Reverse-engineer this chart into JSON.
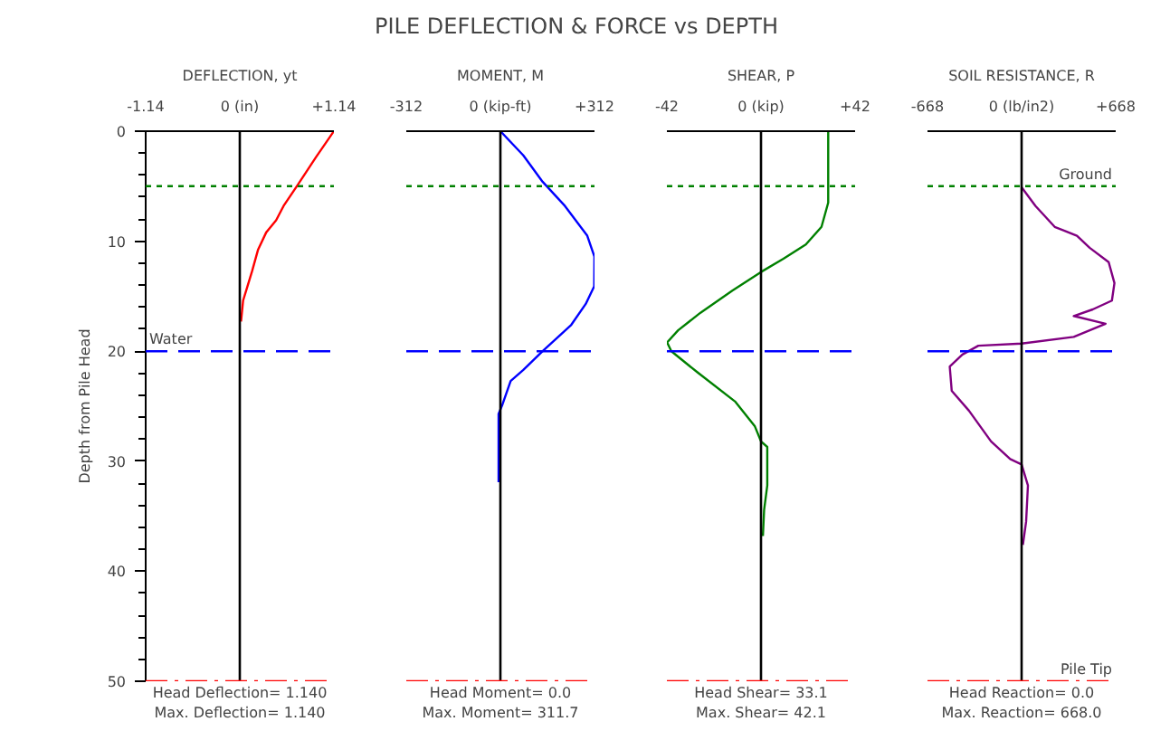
{
  "chart_data": [
    {
      "type": "other",
      "title": "PILE DEFLECTION & FORCE vs DEPTH"
    },
    {
      "type": "line",
      "title": "DEFLECTION, yt",
      "ylabel": "Depth from Pile Head",
      "xlim": [
        -1.14,
        1.14
      ],
      "xticks": [
        {
          "value": -1.14,
          "label": "-1.14"
        },
        {
          "value": 0,
          "label": "0 (in)"
        },
        {
          "value": 1.14,
          "label": "+1.14"
        }
      ],
      "ylim": [
        50,
        0
      ],
      "yticks": [
        0,
        10,
        20,
        30,
        40,
        50
      ],
      "series": [
        {
          "color": "#ff0000",
          "x": [
            1.14,
            0.92,
            0.7,
            0.53,
            0.44,
            0.32,
            0.22,
            0.15,
            0.085,
            0.04,
            0.015
          ],
          "values": [
            0,
            2.4,
            4.9,
            6.8,
            8.1,
            9.2,
            10.8,
            12.7,
            14.3,
            15.4,
            17.3
          ]
        }
      ],
      "ref_lines": [
        {
          "axis": "x",
          "value": 0,
          "color": "#000000",
          "line_style": "solid"
        },
        {
          "axis": "y",
          "value": 5,
          "color": "#008000",
          "line_style": "dotted"
        },
        {
          "axis": "y",
          "value": 20,
          "label": "Water",
          "color": "#0000ff",
          "line_style": "dashed"
        },
        {
          "axis": "y",
          "value": 50,
          "color": "#ff0000",
          "line_style": "dashdot"
        }
      ],
      "annotations": [
        "Head Deflection= 1.140",
        "Max. Deflection= 1.140"
      ]
    },
    {
      "type": "line",
      "title": "MOMENT, M",
      "tick_labels": "x",
      "xlim": [
        -312,
        312
      ],
      "xticks": [
        {
          "value": -312,
          "label": "-312"
        },
        {
          "value": 0,
          "label": "0 (kip-ft)"
        },
        {
          "value": 312,
          "label": "+312"
        }
      ],
      "ylim": [
        50,
        0
      ],
      "series": [
        {
          "color": "#0000ff",
          "x": [
            0,
            76,
            140,
            214,
            288,
            311.7,
            311,
            283,
            235,
            140,
            76,
            34,
            6,
            -6,
            -6
          ],
          "values": [
            0,
            2.2,
            4.6,
            6.8,
            9.5,
            11.4,
            14.1,
            15.7,
            17.6,
            20.0,
            21.7,
            22.7,
            24.9,
            25.7,
            31.9
          ]
        }
      ],
      "ref_lines": [
        {
          "axis": "x",
          "value": 0,
          "color": "#000000",
          "line_style": "solid"
        },
        {
          "axis": "y",
          "value": 5,
          "color": "#008000",
          "line_style": "dotted"
        },
        {
          "axis": "y",
          "value": 20,
          "color": "#0000ff",
          "line_style": "dashed"
        },
        {
          "axis": "y",
          "value": 50,
          "color": "#ff0000",
          "line_style": "dashdot"
        }
      ],
      "annotations": [
        "Head Moment= 0.0",
        "Max. Moment= 311.7"
      ]
    },
    {
      "type": "line",
      "title": "SHEAR, P",
      "tick_labels": "x",
      "xlim": [
        -42,
        42
      ],
      "xticks": [
        {
          "value": -42,
          "label": "-42"
        },
        {
          "value": 0,
          "label": "0 (kip)"
        },
        {
          "value": 42,
          "label": "+42"
        }
      ],
      "ylim": [
        50,
        0
      ],
      "series": [
        {
          "color": "#008000",
          "x": [
            30,
            30,
            27,
            20,
            10,
            0,
            -12.8,
            -27,
            -37,
            -41.9,
            -40,
            -28.5,
            -11.4,
            -2.8,
            0,
            2.8,
            2.8,
            1.4,
            0.85
          ],
          "values": [
            0,
            6.5,
            8.7,
            10.3,
            11.6,
            12.8,
            14.5,
            16.5,
            18.1,
            19.2,
            20.0,
            21.9,
            24.6,
            26.8,
            28.2,
            28.7,
            32.2,
            34.4,
            36.8
          ]
        }
      ],
      "ref_lines": [
        {
          "axis": "x",
          "value": 0,
          "color": "#000000",
          "line_style": "solid"
        },
        {
          "axis": "y",
          "value": 5,
          "color": "#008000",
          "line_style": "dotted"
        },
        {
          "axis": "y",
          "value": 20,
          "color": "#0000ff",
          "line_style": "dashed"
        },
        {
          "axis": "y",
          "value": 50,
          "color": "#ff0000",
          "line_style": "dashdot"
        }
      ],
      "annotations": [
        "Head Shear= 33.1",
        "Max. Shear= 42.1"
      ]
    },
    {
      "type": "line",
      "title": "SOIL RESISTANCE, R",
      "tick_labels": "x",
      "xlim": [
        -668,
        668
      ],
      "xticks": [
        {
          "value": -668,
          "label": "-668"
        },
        {
          "value": 0,
          "label": "0 (lb/in2)"
        },
        {
          "value": 668,
          "label": "+668"
        }
      ],
      "ylim": [
        50,
        0
      ],
      "series": [
        {
          "color": "#800080",
          "x": [
            0,
            99,
            235,
            393,
            483,
            618,
            659,
            641,
            505,
            370,
            596,
            370,
            0,
            -307,
            -420,
            -510,
            -496,
            -374,
            -217,
            -81,
            0,
            45,
            32,
            9
          ],
          "values": [
            5.1,
            6.8,
            8.7,
            9.5,
            10.6,
            11.9,
            13.8,
            15.4,
            16.2,
            16.8,
            17.5,
            18.7,
            19.3,
            19.5,
            20.3,
            21.4,
            23.6,
            25.4,
            28.2,
            29.8,
            30.3,
            32.2,
            35.5,
            37.6
          ]
        }
      ],
      "ref_lines": [
        {
          "axis": "x",
          "value": 0,
          "color": "#000000",
          "line_style": "solid"
        },
        {
          "axis": "y",
          "value": 5,
          "label": "Ground",
          "color": "#008000",
          "line_style": "dotted"
        },
        {
          "axis": "y",
          "value": 20,
          "color": "#0000ff",
          "line_style": "dashed"
        },
        {
          "axis": "y",
          "value": 50,
          "label": "Pile Tip",
          "color": "#ff0000",
          "line_style": "dashdot"
        }
      ],
      "annotations": [
        "Head Reaction= 0.0",
        "Max. Reaction= 668.0"
      ]
    }
  ]
}
